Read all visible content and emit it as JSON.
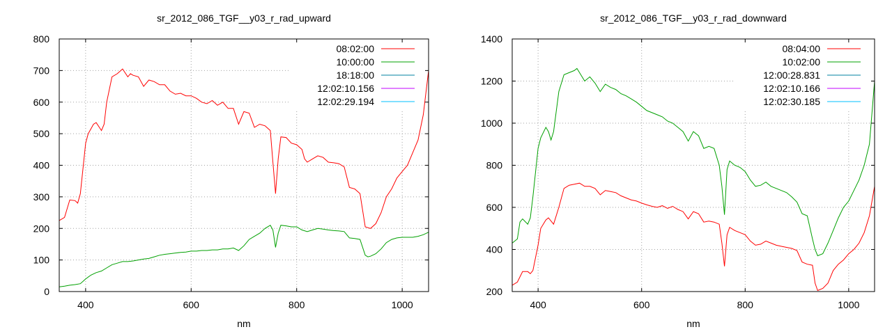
{
  "chart_data": [
    {
      "type": "line",
      "title": "sr_2012_086_TGF__y03_r_rad_upward",
      "xlabel": "nm",
      "ylabel": "",
      "xlim": [
        350,
        1050
      ],
      "ylim": [
        0,
        800
      ],
      "xticks": [
        400,
        600,
        800,
        1000
      ],
      "yticks": [
        0,
        100,
        200,
        300,
        400,
        500,
        600,
        700,
        800
      ],
      "grid": true,
      "legend_position": "top-right",
      "series": [
        {
          "name": "08:02:00",
          "color": "#ff0000",
          "x": [
            350,
            360,
            370,
            380,
            385,
            390,
            400,
            405,
            415,
            420,
            430,
            435,
            440,
            450,
            460,
            470,
            480,
            485,
            490,
            500,
            510,
            520,
            530,
            540,
            550,
            560,
            570,
            580,
            590,
            600,
            610,
            620,
            630,
            640,
            650,
            660,
            670,
            680,
            690,
            700,
            710,
            720,
            730,
            740,
            750,
            755,
            760,
            765,
            770,
            780,
            790,
            800,
            810,
            815,
            820,
            830,
            840,
            850,
            860,
            870,
            880,
            890,
            900,
            910,
            920,
            930,
            940,
            950,
            960,
            970,
            980,
            990,
            1000,
            1010,
            1020,
            1030,
            1040,
            1050
          ],
          "y": [
            225,
            235,
            290,
            288,
            280,
            310,
            470,
            500,
            530,
            535,
            510,
            530,
            600,
            680,
            690,
            705,
            680,
            690,
            685,
            680,
            650,
            670,
            665,
            655,
            655,
            635,
            625,
            628,
            620,
            620,
            612,
            600,
            595,
            605,
            590,
            600,
            580,
            580,
            530,
            570,
            565,
            520,
            530,
            525,
            510,
            410,
            310,
            420,
            490,
            488,
            470,
            465,
            450,
            420,
            410,
            420,
            430,
            425,
            410,
            408,
            405,
            395,
            330,
            325,
            310,
            205,
            200,
            215,
            250,
            300,
            325,
            360,
            380,
            400,
            440,
            480,
            560,
            700
          ]
        },
        {
          "name": "10:00:00",
          "color": "#00a000",
          "x": [
            350,
            360,
            370,
            380,
            390,
            400,
            410,
            420,
            430,
            440,
            450,
            460,
            470,
            480,
            490,
            500,
            510,
            520,
            530,
            540,
            550,
            560,
            570,
            580,
            590,
            600,
            610,
            620,
            630,
            640,
            650,
            660,
            670,
            680,
            690,
            700,
            710,
            720,
            730,
            740,
            750,
            755,
            760,
            765,
            770,
            780,
            790,
            800,
            810,
            820,
            830,
            840,
            850,
            860,
            870,
            880,
            890,
            900,
            910,
            920,
            930,
            935,
            940,
            950,
            960,
            970,
            980,
            990,
            1000,
            1010,
            1020,
            1030,
            1040,
            1050
          ],
          "y": [
            15,
            17,
            20,
            22,
            25,
            40,
            52,
            60,
            65,
            75,
            85,
            90,
            95,
            95,
            97,
            100,
            103,
            105,
            110,
            115,
            118,
            120,
            122,
            124,
            125,
            128,
            128,
            130,
            130,
            132,
            132,
            135,
            135,
            138,
            130,
            145,
            165,
            175,
            185,
            200,
            210,
            195,
            140,
            185,
            210,
            208,
            205,
            205,
            195,
            190,
            195,
            200,
            198,
            195,
            193,
            192,
            190,
            170,
            168,
            165,
            115,
            110,
            112,
            120,
            135,
            155,
            165,
            170,
            172,
            172,
            172,
            175,
            180,
            188
          ]
        },
        {
          "name": "18:18:00",
          "color": "#0080a0",
          "x": [],
          "y": []
        },
        {
          "name": "12:02:10.156",
          "color": "#c000ff",
          "x": [],
          "y": []
        },
        {
          "name": "12:02:29.194",
          "color": "#00c0ff",
          "x": [],
          "y": []
        }
      ]
    },
    {
      "type": "line",
      "title": "sr_2012_086_TGF__y03_r_rad_downward",
      "xlabel": "nm",
      "ylabel": "",
      "xlim": [
        350,
        1050
      ],
      "ylim": [
        200,
        1400
      ],
      "xticks": [
        400,
        600,
        800,
        1000
      ],
      "yticks": [
        200,
        400,
        600,
        800,
        1000,
        1200,
        1400
      ],
      "grid": true,
      "legend_position": "top-right",
      "series": [
        {
          "name": "08:04:00",
          "color": "#ff0000",
          "x": [
            350,
            360,
            370,
            380,
            385,
            390,
            400,
            405,
            415,
            420,
            430,
            440,
            450,
            460,
            470,
            480,
            490,
            500,
            510,
            520,
            530,
            540,
            550,
            560,
            570,
            580,
            590,
            600,
            610,
            620,
            630,
            640,
            650,
            660,
            670,
            680,
            690,
            700,
            710,
            720,
            730,
            740,
            750,
            755,
            760,
            765,
            770,
            780,
            790,
            800,
            810,
            820,
            830,
            840,
            850,
            860,
            870,
            880,
            890,
            900,
            910,
            920,
            930,
            935,
            940,
            950,
            960,
            970,
            980,
            990,
            1000,
            1010,
            1020,
            1030,
            1040,
            1050
          ],
          "y": [
            230,
            245,
            295,
            295,
            285,
            300,
            420,
            500,
            540,
            550,
            520,
            600,
            690,
            705,
            710,
            715,
            700,
            700,
            690,
            660,
            680,
            675,
            670,
            655,
            645,
            635,
            630,
            620,
            612,
            605,
            600,
            608,
            595,
            605,
            590,
            580,
            545,
            580,
            570,
            530,
            535,
            530,
            520,
            430,
            320,
            470,
            505,
            490,
            480,
            470,
            440,
            420,
            425,
            440,
            430,
            420,
            415,
            410,
            405,
            395,
            340,
            330,
            325,
            240,
            205,
            215,
            240,
            300,
            330,
            350,
            380,
            400,
            430,
            480,
            560,
            700
          ]
        },
        {
          "name": "10:02:00",
          "color": "#00a000",
          "x": [
            350,
            360,
            365,
            370,
            380,
            385,
            390,
            400,
            405,
            415,
            420,
            425,
            430,
            440,
            450,
            460,
            470,
            475,
            480,
            490,
            500,
            510,
            520,
            530,
            540,
            550,
            560,
            570,
            580,
            590,
            600,
            610,
            620,
            630,
            640,
            650,
            660,
            670,
            680,
            690,
            700,
            710,
            720,
            730,
            740,
            750,
            755,
            760,
            765,
            770,
            780,
            790,
            800,
            810,
            820,
            830,
            840,
            850,
            860,
            870,
            880,
            890,
            900,
            910,
            920,
            930,
            935,
            940,
            950,
            960,
            970,
            980,
            990,
            1000,
            1010,
            1020,
            1030,
            1040,
            1050
          ],
          "y": [
            430,
            450,
            530,
            545,
            520,
            550,
            650,
            880,
            930,
            980,
            960,
            920,
            960,
            1150,
            1230,
            1240,
            1250,
            1260,
            1240,
            1200,
            1220,
            1190,
            1150,
            1185,
            1170,
            1160,
            1140,
            1130,
            1115,
            1100,
            1080,
            1060,
            1050,
            1040,
            1030,
            1010,
            1000,
            980,
            960,
            915,
            960,
            940,
            880,
            890,
            880,
            800,
            700,
            565,
            780,
            820,
            800,
            790,
            770,
            730,
            700,
            705,
            720,
            700,
            690,
            680,
            670,
            650,
            625,
            570,
            560,
            450,
            400,
            370,
            380,
            430,
            490,
            550,
            600,
            630,
            680,
            730,
            800,
            900,
            1200
          ]
        },
        {
          "name": "12:00:28.831",
          "color": "#0080a0",
          "x": [],
          "y": []
        },
        {
          "name": "12:02:10.166",
          "color": "#c000ff",
          "x": [],
          "y": []
        },
        {
          "name": "12:02:30.185",
          "color": "#00c0ff",
          "x": [],
          "y": []
        }
      ]
    }
  ]
}
